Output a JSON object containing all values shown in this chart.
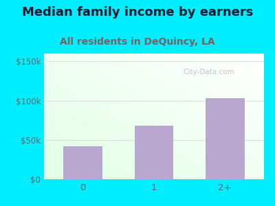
{
  "title": "Median family income by earners",
  "subtitle": "All residents in DeQuincy, LA",
  "categories": [
    "0",
    "1",
    "2+"
  ],
  "values": [
    42000,
    68000,
    103000
  ],
  "bar_color": "#b8a8d0",
  "bar_edge_color": "#b8a8d0",
  "title_fontsize": 13,
  "subtitle_fontsize": 10,
  "title_color": "#1a1a2e",
  "subtitle_color": "#7a6060",
  "outer_bg_color": "#00eeff",
  "yticks": [
    0,
    50000,
    100000,
    150000
  ],
  "ytick_labels": [
    "$0",
    "$50k",
    "$100k",
    "$150k"
  ],
  "ylim": [
    0,
    160000
  ],
  "watermark": "City-Data.com",
  "tick_color": "#666666",
  "grid_color": "#dddddd"
}
